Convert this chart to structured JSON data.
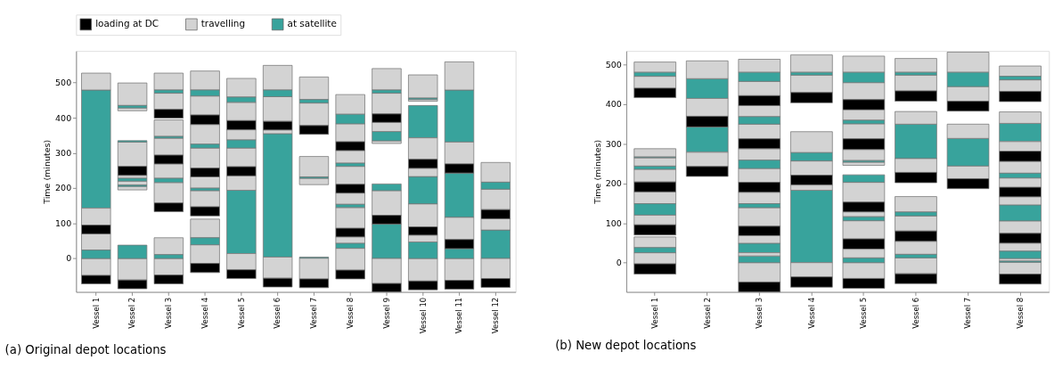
{
  "chart_data": [
    {
      "type": "bar",
      "title": "(a) Original depot locations",
      "ylabel": "Time (minutes)",
      "legend": "top left",
      "categories": [
        "Vessel 1",
        "Vessel 2",
        "Vessel 3",
        "Vessel 4",
        "Vessel 5",
        "Vessel 6",
        "Vessel 7",
        "Vessel 8",
        "Vessel 9",
        "Vessel 10",
        "Vessel 11",
        "Vessel 12"
      ],
      "ylim": [
        -95,
        590
      ],
      "yticks": [
        0,
        100,
        200,
        300,
        400,
        500
      ],
      "series": [
        {
          "name": "loading at DC",
          "color": "#000000",
          "x": [
            "Vessel 1",
            "Vessel 1",
            "Vessel 2",
            "Vessel 2",
            "Vessel 3",
            "Vessel 3",
            "Vessel 3",
            "Vessel 3",
            "Vessel 4",
            "Vessel 4",
            "Vessel 4",
            "Vessel 4",
            "Vessel 5",
            "Vessel 5",
            "Vessel 5",
            "Vessel 6",
            "Vessel 6",
            "Vessel 7",
            "Vessel 7",
            "Vessel 8",
            "Vessel 8",
            "Vessel 8",
            "Vessel 8",
            "Vessel 9",
            "Vessel 9",
            "Vessel 9",
            "Vessel 10",
            "Vessel 10",
            "Vessel 10",
            "Vessel 11",
            "Vessel 11",
            "Vessel 11",
            "Vessel 12",
            "Vessel 12"
          ],
          "base": [
            -72,
            70,
            -86,
            236,
            -72,
            133,
            269,
            399,
            -40,
            121,
            232,
            381,
            -57,
            235,
            366,
            -81,
            365,
            -83,
            353,
            -58,
            61,
            186,
            307,
            -95,
            98,
            387,
            -89,
            66,
            256,
            -87,
            28,
            243,
            -82,
            113
          ],
          "values": [
            24,
            25,
            25,
            26,
            25,
            25,
            25,
            25,
            26,
            26,
            25,
            27,
            25,
            26,
            26,
            25,
            25,
            25,
            25,
            25,
            25,
            25,
            25,
            24,
            25,
            24,
            25,
            24,
            26,
            25,
            26,
            26,
            25,
            26
          ]
        },
        {
          "name": "travelling",
          "color": "#d3d3d3",
          "x": [
            "Vessel 1",
            "Vessel 1",
            "Vessel 1",
            "Vessel 1",
            "Vessel 2",
            "Vessel 2",
            "Vessel 2",
            "Vessel 2",
            "Vessel 2",
            "Vessel 2",
            "Vessel 2",
            "Vessel 3",
            "Vessel 3",
            "Vessel 3",
            "Vessel 3",
            "Vessel 3",
            "Vessel 3",
            "Vessel 3",
            "Vessel 3",
            "Vessel 4",
            "Vessel 4",
            "Vessel 4",
            "Vessel 4",
            "Vessel 4",
            "Vessel 4",
            "Vessel 4",
            "Vessel 4",
            "Vessel 5",
            "Vessel 5",
            "Vessel 5",
            "Vessel 5",
            "Vessel 5",
            "Vessel 5",
            "Vessel 6",
            "Vessel 6",
            "Vessel 6",
            "Vessel 6",
            "Vessel 7",
            "Vessel 7",
            "Vessel 7",
            "Vessel 7",
            "Vessel 7",
            "Vessel 8",
            "Vessel 8",
            "Vessel 8",
            "Vessel 8",
            "Vessel 8",
            "Vessel 8",
            "Vessel 8",
            "Vessel 8",
            "Vessel 9",
            "Vessel 9",
            "Vessel 9",
            "Vessel 9",
            "Vessel 9",
            "Vessel 9",
            "Vessel 10",
            "Vessel 10",
            "Vessel 10",
            "Vessel 10",
            "Vessel 10",
            "Vessel 10",
            "Vessel 10",
            "Vessel 11",
            "Vessel 11",
            "Vessel 11",
            "Vessel 11",
            "Vessel 12",
            "Vessel 12",
            "Vessel 12",
            "Vessel 12"
          ],
          "base": [
            -48,
            24,
            95,
            479,
            -61,
            195,
            209,
            228,
            262,
            420,
            435,
            -47,
            11,
            158,
            228,
            294,
            347,
            424,
            479,
            -14,
            59,
            147,
            200,
            257,
            325,
            408,
            479,
            -32,
            194,
            261,
            337,
            392,
            459,
            -56,
            355,
            390,
            479,
            -58,
            210,
            232,
            378,
            452,
            -33,
            43,
            86,
            154,
            211,
            271,
            332,
            410,
            -71,
            123,
            327,
            361,
            411,
            479,
            -64,
            47,
            90,
            233,
            282,
            447,
            456,
            -62,
            54,
            269,
            479,
            -57,
            81,
            139,
            217
          ],
          "values": [
            48,
            46,
            48,
            48,
            61,
            10,
            11,
            8,
            69,
            8,
            64,
            47,
            48,
            58,
            41,
            48,
            47,
            46,
            48,
            53,
            53,
            46,
            32,
            57,
            56,
            54,
            54,
            46,
            41,
            53,
            29,
            52,
            53,
            60,
            10,
            70,
            70,
            59,
            18,
            58,
            64,
            64,
            62,
            18,
            59,
            32,
            51,
            36,
            51,
            56,
            71,
            70,
            7,
            26,
            59,
            61,
            64,
            19,
            65,
            23,
            61,
            5,
            66,
            62,
            63,
            62,
            80,
            57,
            32,
            58,
            56
          ]
        },
        {
          "name": "at satellite",
          "color": "#38a39c",
          "x": [
            "Vessel 1",
            "Vessel 1",
            "Vessel 2",
            "Vessel 2",
            "Vessel 2",
            "Vessel 2",
            "Vessel 2",
            "Vessel 3",
            "Vessel 3",
            "Vessel 3",
            "Vessel 3",
            "Vessel 4",
            "Vessel 4",
            "Vessel 4",
            "Vessel 4",
            "Vessel 5",
            "Vessel 5",
            "Vessel 5",
            "Vessel 6",
            "Vessel 6",
            "Vessel 7",
            "Vessel 7",
            "Vessel 7",
            "Vessel 8",
            "Vessel 8",
            "Vessel 8",
            "Vessel 8",
            "Vessel 9",
            "Vessel 9",
            "Vessel 9",
            "Vessel 9",
            "Vessel 10",
            "Vessel 10",
            "Vessel 10",
            "Vessel 10",
            "Vessel 11",
            "Vessel 11",
            "Vessel 11",
            "Vessel 12",
            "Vessel 12"
          ],
          "base": [
            0,
            143,
            0,
            205,
            220,
            331,
            428,
            0,
            216,
            342,
            470,
            39,
            193,
            314,
            462,
            14,
            314,
            444,
            4,
            460,
            1,
            228,
            442,
            29,
            145,
            262,
            383,
            0,
            193,
            334,
            470,
            0,
            155,
            343,
            452,
            0,
            117,
            331,
            0,
            197
          ],
          "values": [
            24,
            336,
            38,
            4,
            8,
            4,
            7,
            11,
            12,
            5,
            9,
            20,
            7,
            11,
            17,
            180,
            23,
            15,
            351,
            19,
            3,
            4,
            10,
            14,
            9,
            9,
            27,
            98,
            19,
            27,
            9,
            47,
            78,
            92,
            4,
            28,
            126,
            148,
            81,
            20
          ]
        }
      ]
    },
    {
      "type": "bar",
      "title": "(b) New depot locations",
      "ylabel": "Time (minutes)",
      "legend": "top left",
      "categories": [
        "Vessel 1",
        "Vessel 2",
        "Vessel 3",
        "Vessel 4",
        "Vessel 5",
        "Vessel 6",
        "Vessel 7",
        "Vessel 8"
      ],
      "ylim": [
        -74,
        535
      ],
      "yticks": [
        0,
        100,
        200,
        300,
        400,
        500
      ],
      "series": [
        {
          "name": "loading at DC",
          "color": "#000000",
          "x": [
            "Vessel 1",
            "Vessel 1",
            "Vessel 1",
            "Vessel 1",
            "Vessel 2",
            "Vessel 2",
            "Vessel 3",
            "Vessel 3",
            "Vessel 3",
            "Vessel 3",
            "Vessel 3",
            "Vessel 4",
            "Vessel 4",
            "Vessel 4",
            "Vessel 5",
            "Vessel 5",
            "Vessel 5",
            "Vessel 5",
            "Vessel 5",
            "Vessel 6",
            "Vessel 6",
            "Vessel 6",
            "Vessel 6",
            "Vessel 7",
            "Vessel 7",
            "Vessel 8",
            "Vessel 8",
            "Vessel 8",
            "Vessel 8",
            "Vessel 8"
          ],
          "base": [
            -29,
            70,
            179,
            417,
            218,
            343,
            -74,
            68,
            178,
            288,
            397,
            -62,
            196,
            404,
            -65,
            34,
            128,
            286,
            386,
            -53,
            54,
            202,
            408,
            187,
            383,
            -54,
            49,
            166,
            256,
            407
          ],
          "values": [
            26,
            26,
            25,
            24,
            25,
            27,
            25,
            24,
            25,
            25,
            25,
            26,
            25,
            26,
            25,
            26,
            25,
            27,
            26,
            25,
            26,
            26,
            26,
            25,
            25,
            25,
            25,
            25,
            26,
            26
          ]
        },
        {
          "name": "travelling",
          "color": "#d3d3d3",
          "x": [
            "Vessel 1",
            "Vessel 1",
            "Vessel 1",
            "Vessel 1",
            "Vessel 1",
            "Vessel 1",
            "Vessel 1",
            "Vessel 1",
            "Vessel 1",
            "Vessel 2",
            "Vessel 2",
            "Vessel 2",
            "Vessel 3",
            "Vessel 3",
            "Vessel 3",
            "Vessel 3",
            "Vessel 3",
            "Vessel 3",
            "Vessel 3",
            "Vessel 3",
            "Vessel 3",
            "Vessel 3",
            "Vessel 3",
            "Vessel 4",
            "Vessel 4",
            "Vessel 4",
            "Vessel 4",
            "Vessel 4",
            "Vessel 4",
            "Vessel 5",
            "Vessel 5",
            "Vessel 5",
            "Vessel 5",
            "Vessel 5",
            "Vessel 5",
            "Vessel 5",
            "Vessel 5",
            "Vessel 5",
            "Vessel 5",
            "Vessel 5",
            "Vessel 6",
            "Vessel 6",
            "Vessel 6",
            "Vessel 6",
            "Vessel 6",
            "Vessel 6",
            "Vessel 6",
            "Vessel 6",
            "Vessel 7",
            "Vessel 7",
            "Vessel 7",
            "Vessel 7",
            "Vessel 8",
            "Vessel 8",
            "Vessel 8",
            "Vessel 8",
            "Vessel 8",
            "Vessel 8",
            "Vessel 8",
            "Vessel 8",
            "Vessel 8",
            "Vessel 8",
            "Vessel 8"
          ],
          "base": [
            -3,
            38,
            96,
            149,
            204,
            244,
            267,
            441,
            481,
            243,
            370,
            465,
            -49,
            17,
            49,
            92,
            149,
            203,
            259,
            313,
            369,
            422,
            481,
            -36,
            183,
            221,
            278,
            430,
            481,
            -40,
            12,
            60,
            116,
            153,
            246,
            258,
            313,
            360,
            412,
            481,
            -28,
            21,
            80,
            128,
            228,
            350,
            434,
            481,
            212,
            314,
            408,
            481,
            -29,
            4,
            29,
            74,
            146,
            191,
            226,
            282,
            352,
            433,
            471
          ],
          "values": [
            28,
            27,
            24,
            30,
            32,
            21,
            21,
            30,
            26,
            36,
            45,
            45,
            49,
            8,
            19,
            47,
            29,
            35,
            29,
            37,
            28,
            36,
            33,
            36,
            13,
            36,
            53,
            44,
            44,
            40,
            22,
            46,
            12,
            50,
            8,
            28,
            38,
            26,
            43,
            41,
            40,
            33,
            38,
            39,
            35,
            32,
            40,
            35,
            32,
            36,
            37,
            51,
            30,
            6,
            20,
            31,
            20,
            23,
            30,
            24,
            29,
            29,
            26
          ]
        },
        {
          "name": "at satellite",
          "color": "#38a39c",
          "x": [
            "Vessel 1",
            "Vessel 1",
            "Vessel 1",
            "Vessel 1",
            "Vessel 1",
            "Vessel 2",
            "Vessel 2",
            "Vessel 3",
            "Vessel 3",
            "Vessel 3",
            "Vessel 3",
            "Vessel 3",
            "Vessel 3",
            "Vessel 4",
            "Vessel 4",
            "Vessel 4",
            "Vessel 5",
            "Vessel 5",
            "Vessel 5",
            "Vessel 5",
            "Vessel 5",
            "Vessel 5",
            "Vessel 6",
            "Vessel 6",
            "Vessel 6",
            "Vessel 6",
            "Vessel 7",
            "Vessel 7",
            "Vessel 8",
            "Vessel 8",
            "Vessel 8",
            "Vessel 8",
            "Vessel 8",
            "Vessel 8"
          ],
          "base": [
            25,
            120,
            236,
            265,
            471,
            279,
            415,
            0,
            25,
            139,
            238,
            350,
            458,
            0,
            257,
            474,
            0,
            106,
            203,
            254,
            351,
            455,
            12,
            118,
            263,
            474,
            244,
            445,
            1,
            10,
            105,
            214,
            306,
            462
          ],
          "values": [
            13,
            29,
            8,
            2,
            10,
            64,
            50,
            17,
            24,
            10,
            21,
            19,
            23,
            183,
            21,
            7,
            12,
            10,
            19,
            4,
            9,
            26,
            9,
            10,
            87,
            7,
            70,
            36,
            3,
            19,
            41,
            12,
            46,
            9
          ]
        }
      ]
    }
  ]
}
